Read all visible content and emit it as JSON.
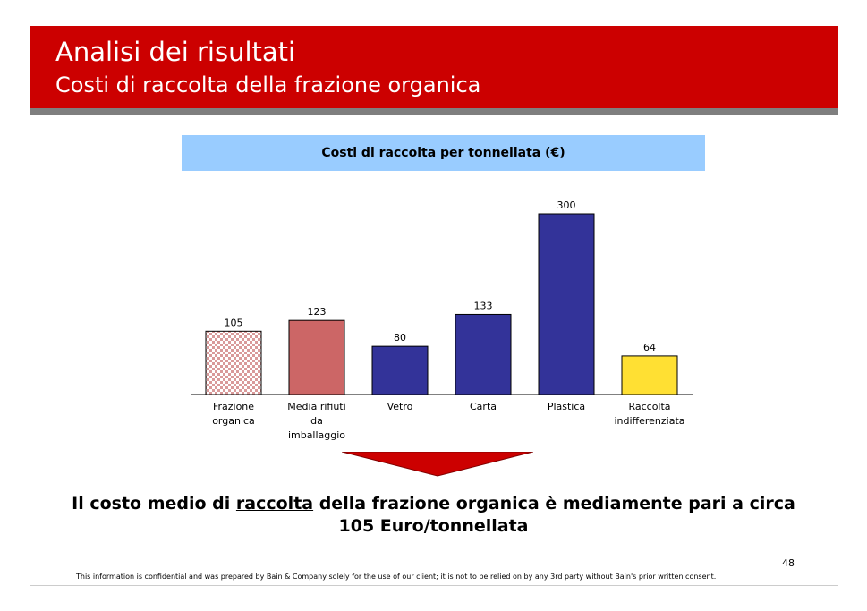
{
  "header": {
    "title": "Analisi dei risultati",
    "subtitle": "Costi di raccolta della frazione organica"
  },
  "chart_data": {
    "type": "bar",
    "title": "Costi di raccolta per tonnellata (€)",
    "categories": [
      "Frazione organica",
      "Media rifiuti da imballaggio",
      "Vetro",
      "Carta",
      "Plastica",
      "Raccolta indifferenziata"
    ],
    "category_lines": [
      [
        "Frazione",
        "organica"
      ],
      [
        "Media rifiuti",
        "da",
        "imballaggio"
      ],
      [
        "Vetro"
      ],
      [
        "Carta"
      ],
      [
        "Plastica"
      ],
      [
        "Raccolta",
        "indifferenziata"
      ]
    ],
    "values": [
      105,
      123,
      80,
      133,
      300,
      64
    ],
    "data_labels": [
      "105",
      "123",
      "80",
      "133",
      "300",
      "64"
    ],
    "bar_colors": [
      "#f2d4d4",
      "#cc6666",
      "#333399",
      "#333399",
      "#333399",
      "#ffe033"
    ],
    "bar_patterns": [
      "checker",
      "none",
      "none",
      "none",
      "none",
      "none"
    ],
    "ylim": [
      0,
      300
    ],
    "grid": false,
    "legend": "none"
  },
  "conclusion": {
    "part1": "Il costo medio di ",
    "underlined": "raccolta",
    "part2": " della frazione organica è mediamente pari a circa 105 Euro/tonnellata"
  },
  "page_number": "48",
  "footer": "This information is confidential and was prepared by Bain & Company solely for the use of our client; it is not to be relied on by any 3rd party without Bain's prior written consent.",
  "colors": {
    "header_red": "#cc0000",
    "header_rule_gray": "#7f7f7f",
    "chart_title_blue": "#99ccff",
    "arrow_red": "#cc0000"
  }
}
